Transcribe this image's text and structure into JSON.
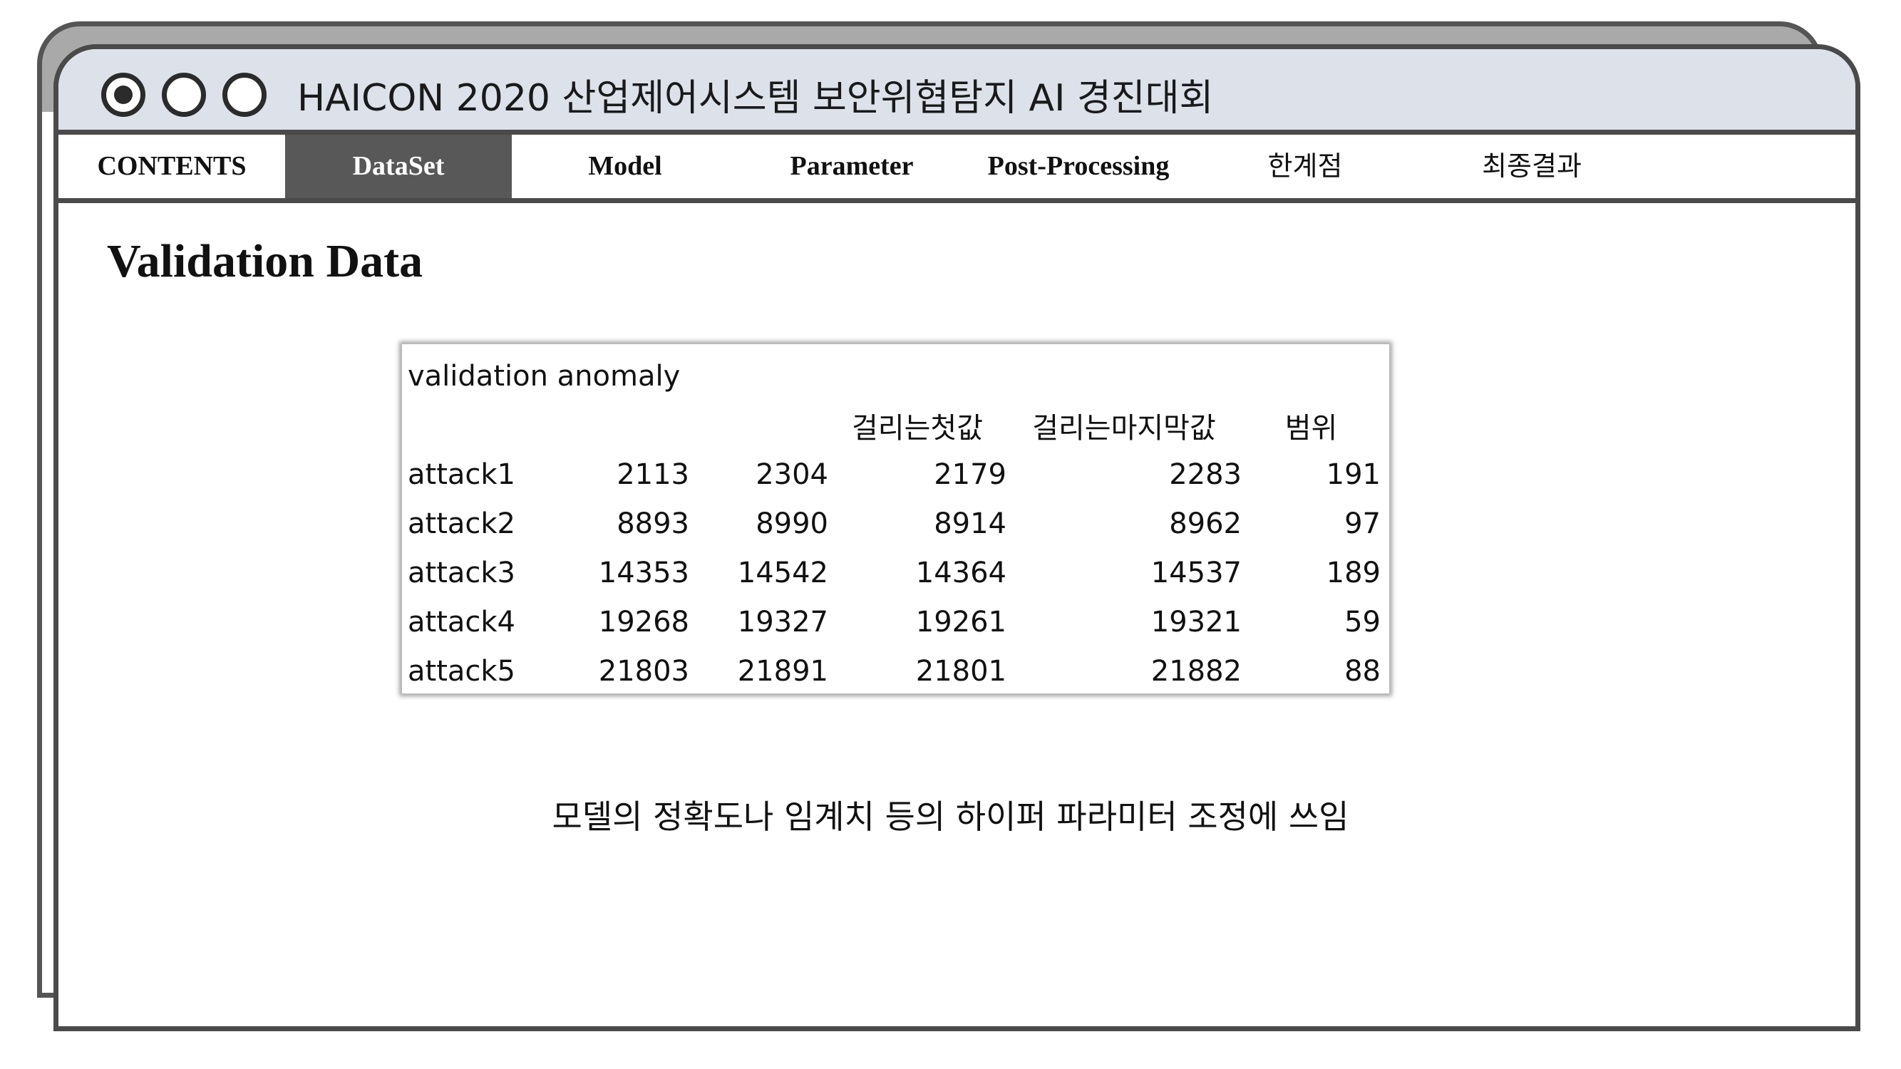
{
  "window": {
    "title": "HAICON 2020 산업제어시스템 보안위협탐지 AI 경진대회"
  },
  "tabs": [
    {
      "label": "CONTENTS",
      "active": false
    },
    {
      "label": "DataSet",
      "active": true
    },
    {
      "label": "Model",
      "active": false
    },
    {
      "label": "Parameter",
      "active": false
    },
    {
      "label": "Post-Processing",
      "active": false
    },
    {
      "label": "한계점",
      "active": false
    },
    {
      "label": "최종결과",
      "active": false
    }
  ],
  "page_title": "Validation Data",
  "table": {
    "caption": "validation anomaly",
    "headers": [
      "",
      "",
      "",
      "걸리는첫값",
      "걸리는마지막값",
      "범위"
    ],
    "rows": [
      [
        "attack1",
        "2113",
        "2304",
        "2179",
        "2283",
        "191"
      ],
      [
        "attack2",
        "8893",
        "8990",
        "8914",
        "8962",
        "97"
      ],
      [
        "attack3",
        "14353",
        "14542",
        "14364",
        "14537",
        "189"
      ],
      [
        "attack4",
        "19268",
        "19327",
        "19261",
        "19321",
        "59"
      ],
      [
        "attack5",
        "21803",
        "21891",
        "21801",
        "21882",
        "88"
      ]
    ]
  },
  "footnote": "모델의 정확도나 임계치 등의 하이퍼 파라미터 조정에 쓰임",
  "colors": {
    "titlebar": "#dde1ea",
    "active_tab": "#585858",
    "border": "#4a4a4a",
    "back_window": "#a9a9a9"
  }
}
